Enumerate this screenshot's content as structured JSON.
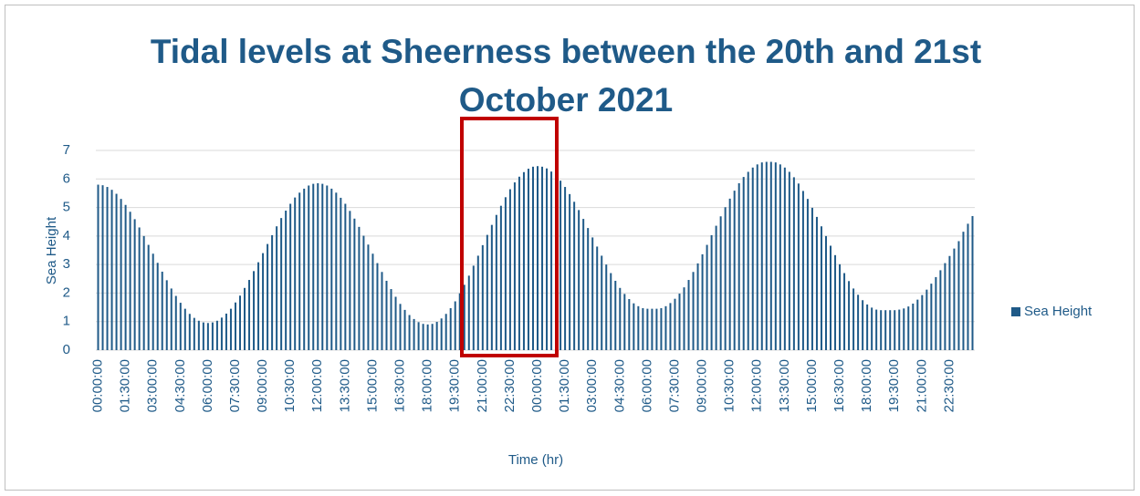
{
  "chart_data": {
    "type": "bar",
    "title": "Tidal levels at Sheerness between the 20th and 21st October 2021",
    "x_label": "Time (hr)",
    "y_label": "Sea Height",
    "categories": [
      "00:00:00",
      null,
      null,
      null,
      null,
      null,
      "01:30:00",
      null,
      null,
      null,
      null,
      null,
      "03:00:00",
      null,
      null,
      null,
      null,
      null,
      "04:30:00",
      null,
      null,
      null,
      null,
      null,
      "06:00:00",
      null,
      null,
      null,
      null,
      null,
      "07:30:00",
      null,
      null,
      null,
      null,
      null,
      "09:00:00",
      null,
      null,
      null,
      null,
      null,
      "10:30:00",
      null,
      null,
      null,
      null,
      null,
      "12:00:00",
      null,
      null,
      null,
      null,
      null,
      "13:30:00",
      null,
      null,
      null,
      null,
      null,
      "15:00:00",
      null,
      null,
      null,
      null,
      null,
      "16:30:00",
      null,
      null,
      null,
      null,
      null,
      "18:00:00",
      null,
      null,
      null,
      null,
      null,
      "19:30:00",
      null,
      null,
      null,
      null,
      null,
      "21:00:00",
      null,
      null,
      null,
      null,
      null,
      "22:30:00",
      null,
      null,
      null,
      null,
      null,
      "00:00:00",
      null,
      null,
      null,
      null,
      null,
      "01:30:00",
      null,
      null,
      null,
      null,
      null,
      "03:00:00",
      null,
      null,
      null,
      null,
      null,
      "04:30:00",
      null,
      null,
      null,
      null,
      null,
      "06:00:00",
      null,
      null,
      null,
      null,
      null,
      "07:30:00",
      null,
      null,
      null,
      null,
      null,
      "09:00:00",
      null,
      null,
      null,
      null,
      null,
      "10:30:00",
      null,
      null,
      null,
      null,
      null,
      "12:00:00",
      null,
      null,
      null,
      null,
      null,
      "13:30:00",
      null,
      null,
      null,
      null,
      null,
      "15:00:00",
      null,
      null,
      null,
      null,
      null,
      "16:30:00",
      null,
      null,
      null,
      null,
      null,
      "18:00:00",
      null,
      null,
      null,
      null,
      null,
      "19:30:00",
      null,
      null,
      null,
      null,
      null,
      "21:00:00",
      null,
      null,
      null,
      null,
      null,
      "22:30:00",
      null,
      null,
      null,
      null,
      null
    ],
    "series": [
      {
        "name": "Sea Height",
        "color": "#1f5a88",
        "values": [
          5.8,
          5.78,
          5.72,
          5.62,
          5.48,
          5.3,
          5.09,
          4.85,
          4.59,
          4.3,
          4.0,
          3.69,
          3.38,
          3.06,
          2.75,
          2.45,
          2.16,
          1.9,
          1.66,
          1.45,
          1.27,
          1.13,
          1.03,
          0.97,
          0.95,
          0.97,
          1.03,
          1.14,
          1.28,
          1.45,
          1.67,
          1.91,
          2.18,
          2.46,
          2.77,
          3.08,
          3.4,
          3.72,
          4.03,
          4.34,
          4.63,
          4.89,
          5.13,
          5.35,
          5.52,
          5.66,
          5.77,
          5.83,
          5.85,
          5.83,
          5.77,
          5.66,
          5.52,
          5.34,
          5.13,
          4.88,
          4.61,
          4.32,
          4.01,
          3.7,
          3.38,
          3.05,
          2.74,
          2.43,
          2.14,
          1.87,
          1.62,
          1.41,
          1.23,
          1.09,
          0.98,
          0.92,
          0.9,
          0.92,
          0.99,
          1.11,
          1.27,
          1.47,
          1.71,
          1.99,
          2.29,
          2.61,
          2.96,
          3.31,
          3.68,
          4.04,
          4.39,
          4.74,
          5.06,
          5.36,
          5.64,
          5.88,
          6.08,
          6.24,
          6.36,
          6.43,
          6.45,
          6.43,
          6.37,
          6.26,
          6.12,
          5.94,
          5.72,
          5.47,
          5.2,
          4.91,
          4.6,
          4.28,
          3.95,
          3.63,
          3.31,
          3.0,
          2.7,
          2.43,
          2.18,
          1.97,
          1.79,
          1.64,
          1.54,
          1.47,
          1.45,
          1.45,
          1.45,
          1.47,
          1.54,
          1.65,
          1.8,
          1.98,
          2.2,
          2.46,
          2.74,
          3.04,
          3.36,
          3.69,
          4.03,
          4.36,
          4.69,
          5.01,
          5.31,
          5.59,
          5.85,
          6.07,
          6.25,
          6.4,
          6.51,
          6.58,
          6.6,
          6.6,
          6.58,
          6.51,
          6.4,
          6.25,
          6.06,
          5.84,
          5.58,
          5.3,
          4.99,
          4.67,
          4.34,
          4.0,
          3.66,
          3.33,
          3.01,
          2.7,
          2.42,
          2.16,
          1.94,
          1.75,
          1.6,
          1.49,
          1.42,
          1.4,
          1.4,
          1.4,
          1.4,
          1.42,
          1.46,
          1.53,
          1.63,
          1.77,
          1.93,
          2.12,
          2.33,
          2.56,
          2.8,
          3.05,
          3.3,
          3.56,
          3.82,
          4.15,
          4.43,
          4.7
        ]
      }
    ],
    "ylim": [
      0,
      7
    ],
    "yticks": [
      0,
      1,
      2,
      3,
      4,
      5,
      6,
      7
    ],
    "grid": true,
    "legend": "right"
  }
}
